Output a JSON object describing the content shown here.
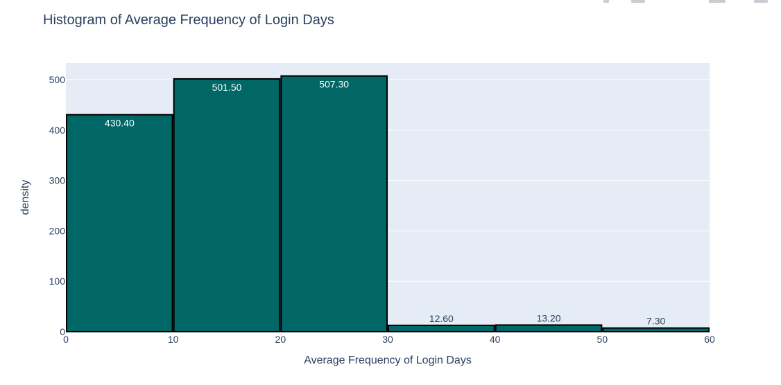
{
  "chart_data": {
    "type": "bar",
    "title": "Histogram of Average Frequency of Login Days",
    "xlabel": "Average Frequency of Login Days",
    "ylabel": "density",
    "bins": [
      {
        "start": 0,
        "end": 10,
        "value": 430.4,
        "label": "430.40"
      },
      {
        "start": 10,
        "end": 20,
        "value": 501.5,
        "label": "501.50"
      },
      {
        "start": 20,
        "end": 30,
        "value": 507.3,
        "label": "507.30"
      },
      {
        "start": 30,
        "end": 40,
        "value": 12.6,
        "label": "12.60"
      },
      {
        "start": 40,
        "end": 50,
        "value": 13.2,
        "label": "13.20"
      },
      {
        "start": 50,
        "end": 60,
        "value": 7.3,
        "label": "7.30"
      }
    ],
    "xlim": [
      0,
      60
    ],
    "ylim": [
      0,
      533
    ],
    "xticks": [
      0,
      10,
      20,
      30,
      40,
      50,
      60
    ],
    "yticks": [
      0,
      100,
      200,
      300,
      400,
      500
    ],
    "grid": true,
    "colors": {
      "bar": "#006666",
      "bar_outline": "#000000",
      "plot_background": "#e5ecf6",
      "grid": "#ffffff",
      "text": "#2a3f5f",
      "label_inside": "#ffffff",
      "label_outside": "#2a3f5f"
    }
  },
  "modebar": {
    "icons": [
      "camera-icon",
      "zoom-icon",
      "pan-icon",
      "autoscale-icon",
      "menu-icon"
    ]
  }
}
